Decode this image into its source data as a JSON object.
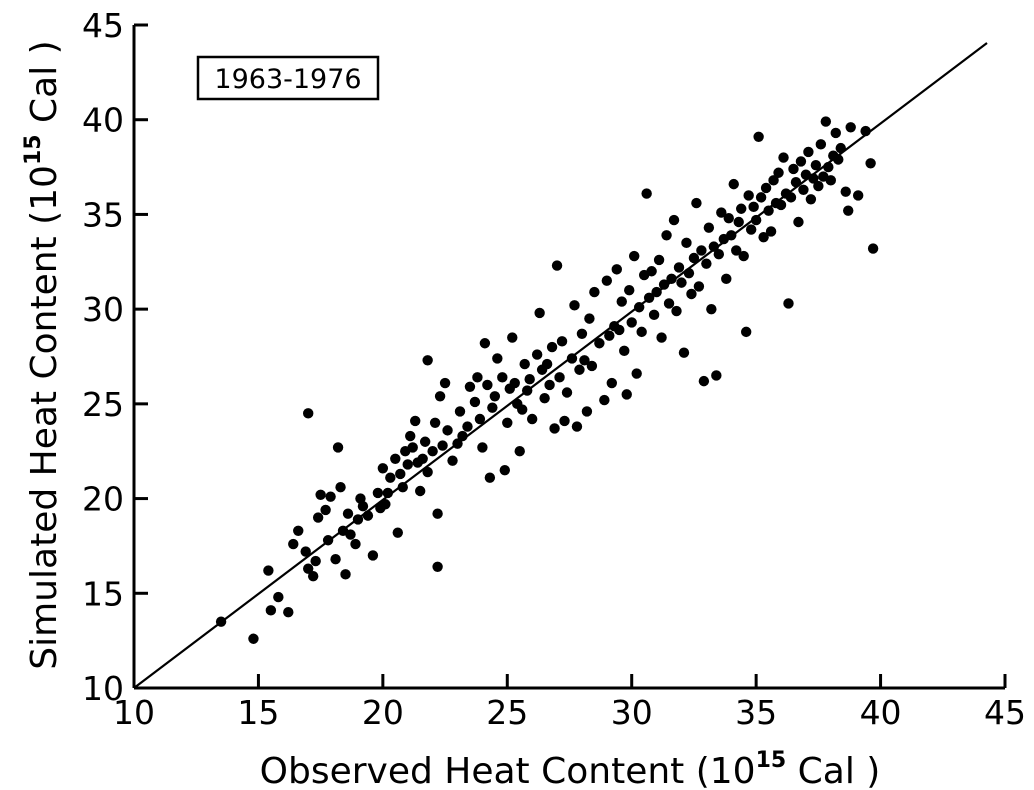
{
  "chart_data": {
    "type": "scatter",
    "title": "",
    "annotation": "1963-1976",
    "xlabel": "Observed Heat Content (10^15 Cal)",
    "xlabel_parts": {
      "main": "Observed Heat Content (10",
      "sup": "15",
      "tail": " Cal )"
    },
    "ylabel": "Simulated Heat Content (10^15 Cal)",
    "ylabel_parts": {
      "main": "Simulated Heat Content (10",
      "sup": "15",
      "tail": " Cal )"
    },
    "xlim": [
      10,
      45
    ],
    "ylim": [
      10,
      45
    ],
    "xticks": [
      "10",
      "15",
      "20",
      "25",
      "30",
      "35",
      "40",
      "45"
    ],
    "yticks": [
      "10",
      "15",
      "20",
      "25",
      "30",
      "35",
      "40",
      "45"
    ],
    "grid": false,
    "line": {
      "type": "1:1",
      "x": [
        10,
        45
      ],
      "y": [
        10,
        45
      ]
    },
    "points": [
      [
        13.5,
        13.5
      ],
      [
        14.8,
        12.6
      ],
      [
        15.4,
        16.2
      ],
      [
        15.5,
        14.1
      ],
      [
        15.8,
        14.8
      ],
      [
        16.2,
        14.0
      ],
      [
        16.4,
        17.6
      ],
      [
        16.6,
        18.3
      ],
      [
        16.9,
        17.2
      ],
      [
        17.0,
        16.3
      ],
      [
        17.2,
        15.9
      ],
      [
        17.3,
        16.7
      ],
      [
        17.4,
        19.0
      ],
      [
        17.5,
        20.2
      ],
      [
        17.7,
        19.4
      ],
      [
        17.8,
        17.8
      ],
      [
        17.9,
        20.1
      ],
      [
        18.1,
        16.8
      ],
      [
        18.3,
        20.6
      ],
      [
        18.4,
        18.3
      ],
      [
        18.5,
        16.0
      ],
      [
        18.6,
        19.2
      ],
      [
        18.7,
        18.1
      ],
      [
        18.9,
        17.6
      ],
      [
        19.0,
        18.9
      ],
      [
        19.1,
        20.0
      ],
      [
        19.2,
        19.6
      ],
      [
        19.4,
        19.1
      ],
      [
        19.6,
        17.0
      ],
      [
        19.8,
        20.3
      ],
      [
        19.9,
        19.5
      ],
      [
        20.0,
        21.6
      ],
      [
        20.1,
        19.7
      ],
      [
        20.2,
        20.3
      ],
      [
        20.3,
        21.1
      ],
      [
        20.5,
        22.1
      ],
      [
        20.6,
        18.2
      ],
      [
        20.7,
        21.3
      ],
      [
        20.8,
        20.6
      ],
      [
        20.9,
        22.5
      ],
      [
        21.0,
        21.8
      ],
      [
        21.1,
        23.3
      ],
      [
        21.2,
        22.7
      ],
      [
        21.3,
        24.1
      ],
      [
        21.4,
        21.9
      ],
      [
        21.5,
        20.4
      ],
      [
        21.6,
        22.1
      ],
      [
        21.7,
        23.0
      ],
      [
        21.8,
        21.4
      ],
      [
        22.0,
        22.5
      ],
      [
        22.1,
        24.0
      ],
      [
        22.2,
        19.2
      ],
      [
        22.2,
        16.4
      ],
      [
        22.3,
        25.4
      ],
      [
        22.4,
        22.8
      ],
      [
        22.6,
        23.6
      ],
      [
        22.8,
        22.0
      ],
      [
        23.0,
        22.9
      ],
      [
        23.1,
        24.6
      ],
      [
        23.2,
        23.3
      ],
      [
        23.4,
        23.8
      ],
      [
        23.5,
        25.9
      ],
      [
        23.7,
        25.1
      ],
      [
        23.8,
        26.4
      ],
      [
        23.9,
        24.2
      ],
      [
        24.0,
        22.7
      ],
      [
        24.1,
        28.2
      ],
      [
        24.2,
        26.0
      ],
      [
        24.3,
        21.1
      ],
      [
        24.4,
        24.8
      ],
      [
        24.5,
        25.4
      ],
      [
        24.6,
        27.4
      ],
      [
        24.8,
        26.4
      ],
      [
        24.9,
        21.5
      ],
      [
        25.0,
        24.0
      ],
      [
        25.1,
        25.8
      ],
      [
        25.2,
        28.5
      ],
      [
        25.3,
        26.1
      ],
      [
        25.4,
        25.0
      ],
      [
        25.5,
        22.5
      ],
      [
        25.6,
        24.7
      ],
      [
        25.7,
        27.1
      ],
      [
        25.8,
        25.7
      ],
      [
        25.9,
        26.3
      ],
      [
        26.0,
        24.2
      ],
      [
        26.2,
        27.6
      ],
      [
        26.3,
        29.8
      ],
      [
        26.4,
        26.8
      ],
      [
        26.5,
        25.3
      ],
      [
        26.6,
        27.1
      ],
      [
        26.7,
        26.0
      ],
      [
        26.8,
        28.0
      ],
      [
        26.9,
        23.7
      ],
      [
        27.0,
        32.3
      ],
      [
        27.1,
        26.4
      ],
      [
        27.2,
        28.3
      ],
      [
        27.3,
        24.1
      ],
      [
        27.4,
        25.6
      ],
      [
        27.6,
        27.4
      ],
      [
        27.7,
        30.2
      ],
      [
        27.8,
        23.8
      ],
      [
        27.9,
        26.8
      ],
      [
        28.0,
        28.7
      ],
      [
        28.1,
        27.3
      ],
      [
        28.2,
        24.6
      ],
      [
        28.3,
        29.5
      ],
      [
        28.4,
        27.0
      ],
      [
        28.5,
        30.9
      ],
      [
        28.7,
        28.2
      ],
      [
        28.9,
        25.2
      ],
      [
        29.0,
        31.5
      ],
      [
        29.1,
        28.6
      ],
      [
        29.2,
        26.1
      ],
      [
        29.3,
        29.1
      ],
      [
        29.4,
        32.1
      ],
      [
        29.5,
        28.9
      ],
      [
        29.6,
        30.4
      ],
      [
        29.7,
        27.8
      ],
      [
        29.8,
        25.5
      ],
      [
        29.9,
        31.0
      ],
      [
        30.0,
        29.3
      ],
      [
        30.1,
        32.8
      ],
      [
        30.2,
        26.6
      ],
      [
        30.3,
        30.1
      ],
      [
        30.4,
        28.8
      ],
      [
        30.5,
        31.8
      ],
      [
        30.6,
        36.1
      ],
      [
        30.7,
        30.6
      ],
      [
        30.8,
        32.0
      ],
      [
        30.9,
        29.7
      ],
      [
        31.0,
        30.9
      ],
      [
        31.1,
        32.6
      ],
      [
        31.2,
        28.5
      ],
      [
        31.3,
        31.3
      ],
      [
        31.4,
        33.9
      ],
      [
        31.5,
        30.3
      ],
      [
        31.6,
        31.6
      ],
      [
        31.7,
        34.7
      ],
      [
        31.8,
        29.9
      ],
      [
        31.9,
        32.2
      ],
      [
        32.0,
        31.4
      ],
      [
        32.1,
        27.7
      ],
      [
        32.2,
        33.5
      ],
      [
        32.3,
        31.9
      ],
      [
        32.4,
        30.8
      ],
      [
        32.5,
        32.7
      ],
      [
        32.6,
        35.6
      ],
      [
        32.7,
        31.2
      ],
      [
        32.8,
        33.1
      ],
      [
        32.9,
        26.2
      ],
      [
        33.0,
        32.4
      ],
      [
        33.1,
        34.3
      ],
      [
        33.2,
        30.0
      ],
      [
        33.3,
        33.3
      ],
      [
        33.4,
        26.5
      ],
      [
        33.5,
        32.9
      ],
      [
        33.6,
        35.1
      ],
      [
        33.7,
        33.7
      ],
      [
        33.8,
        31.6
      ],
      [
        33.9,
        34.8
      ],
      [
        34.0,
        33.9
      ],
      [
        34.1,
        36.6
      ],
      [
        34.2,
        33.1
      ],
      [
        34.3,
        34.6
      ],
      [
        34.4,
        35.3
      ],
      [
        34.5,
        32.8
      ],
      [
        34.6,
        28.8
      ],
      [
        34.7,
        36.0
      ],
      [
        34.8,
        34.2
      ],
      [
        34.9,
        35.4
      ],
      [
        35.0,
        34.7
      ],
      [
        35.1,
        39.1
      ],
      [
        35.2,
        35.9
      ],
      [
        35.3,
        33.8
      ],
      [
        35.4,
        36.4
      ],
      [
        35.5,
        35.2
      ],
      [
        35.6,
        34.1
      ],
      [
        35.7,
        36.8
      ],
      [
        35.8,
        35.6
      ],
      [
        35.9,
        37.2
      ],
      [
        36.0,
        35.5
      ],
      [
        36.1,
        38.0
      ],
      [
        36.2,
        36.1
      ],
      [
        36.3,
        30.3
      ],
      [
        36.4,
        35.9
      ],
      [
        36.5,
        37.4
      ],
      [
        36.6,
        36.7
      ],
      [
        36.7,
        34.6
      ],
      [
        36.8,
        37.8
      ],
      [
        36.9,
        36.3
      ],
      [
        37.0,
        37.1
      ],
      [
        37.1,
        38.3
      ],
      [
        37.2,
        35.8
      ],
      [
        37.3,
        36.9
      ],
      [
        37.4,
        37.6
      ],
      [
        37.5,
        36.5
      ],
      [
        37.6,
        38.7
      ],
      [
        37.7,
        37.0
      ],
      [
        37.8,
        39.9
      ],
      [
        37.9,
        37.5
      ],
      [
        38.0,
        36.8
      ],
      [
        38.1,
        38.1
      ],
      [
        38.2,
        39.3
      ],
      [
        38.3,
        37.9
      ],
      [
        38.4,
        38.5
      ],
      [
        38.6,
        36.2
      ],
      [
        38.7,
        35.2
      ],
      [
        38.8,
        39.6
      ],
      [
        39.1,
        36.0
      ],
      [
        39.4,
        39.4
      ],
      [
        39.6,
        37.7
      ],
      [
        39.7,
        33.2
      ],
      [
        21.8,
        27.3
      ],
      [
        17.0,
        24.5
      ],
      [
        18.2,
        22.7
      ],
      [
        22.5,
        26.1
      ]
    ]
  }
}
